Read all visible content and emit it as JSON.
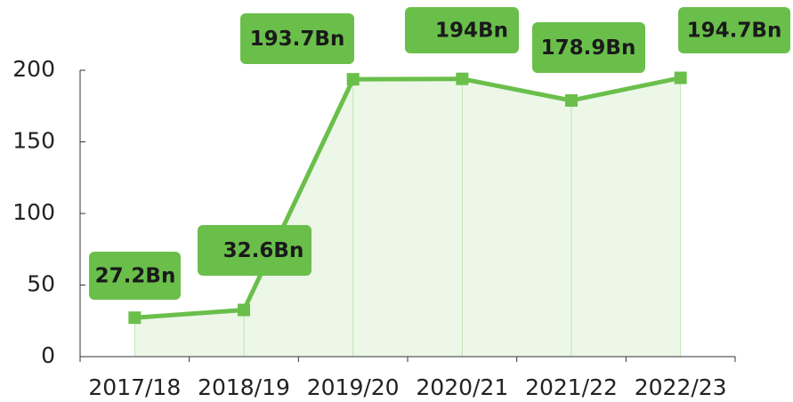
{
  "chart_data": {
    "type": "line",
    "categories": [
      "2017/18",
      "2018/19",
      "2019/20",
      "2020/21",
      "2021/22",
      "2022/23"
    ],
    "values": [
      27.2,
      32.6,
      193.7,
      194,
      178.9,
      194.7
    ],
    "value_labels": [
      "27.2Bn",
      "32.6Bn",
      "193.7Bn",
      "194Bn",
      "178.9Bn",
      "194.7Bn"
    ],
    "color": "#6abf4b",
    "ylim": [
      0,
      200
    ],
    "yticks": [
      0,
      50,
      100,
      150,
      200
    ]
  }
}
